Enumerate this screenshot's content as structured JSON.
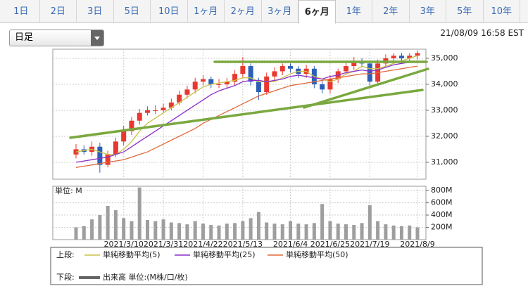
{
  "tabs": [
    "1日",
    "2日",
    "3日",
    "5日",
    "10日",
    "1ヶ月",
    "2ヶ月",
    "3ヶ月",
    "6ヶ月",
    "1年",
    "2年",
    "3年",
    "5年",
    "10年"
  ],
  "active_tab": 8,
  "dropdown": "日足",
  "timestamp": "21/08/09 16:58 EST",
  "chart_data": [
    {
      "type": "candlestick",
      "up_color": "#e8382f",
      "down_color": "#2c5fb8",
      "open": [
        31300,
        31500,
        31400,
        31600,
        30900,
        31300,
        31800,
        32200,
        32600,
        32900,
        33000,
        33000,
        33100,
        33300,
        33600,
        33800,
        34100,
        34200,
        34000,
        34000,
        34100,
        34400,
        34700,
        34100,
        33700,
        34300,
        34500,
        34700,
        34600,
        34400,
        34600,
        34000,
        33800,
        34200,
        34500,
        34700,
        34900,
        34800,
        34100,
        34800,
        35000,
        35100,
        35000,
        35100
      ],
      "high": [
        31700,
        31650,
        31800,
        31750,
        31450,
        31950,
        32400,
        32750,
        33050,
        33150,
        33200,
        33250,
        33450,
        33750,
        33950,
        34250,
        34350,
        34300,
        34200,
        34250,
        34550,
        35050,
        34800,
        34250,
        34450,
        34650,
        34800,
        34800,
        34700,
        34750,
        34700,
        34150,
        34350,
        34600,
        34850,
        35050,
        35000,
        34900,
        34950,
        35150,
        35200,
        35200,
        35200,
        35300
      ],
      "low": [
        31150,
        31300,
        31250,
        30600,
        30800,
        31200,
        31650,
        32050,
        32450,
        32800,
        32850,
        32900,
        33000,
        33200,
        33450,
        33650,
        33950,
        33850,
        33850,
        33850,
        33950,
        34250,
        33950,
        33400,
        33600,
        34150,
        34350,
        34450,
        34250,
        34250,
        33850,
        33650,
        33650,
        34050,
        34350,
        34550,
        34650,
        33900,
        33950,
        34650,
        34850,
        34850,
        34900,
        34950
      ],
      "close": [
        31500,
        31400,
        31600,
        30900,
        31300,
        31800,
        32200,
        32600,
        32900,
        33000,
        33000,
        33100,
        33300,
        33600,
        33800,
        34100,
        34200,
        34000,
        34000,
        34100,
        34400,
        34700,
        34100,
        33700,
        34300,
        34500,
        34700,
        34600,
        34400,
        34600,
        34000,
        33800,
        34200,
        34500,
        34700,
        34900,
        34800,
        34100,
        34800,
        35000,
        35100,
        35000,
        35100,
        35200
      ],
      "series": [
        {
          "name": "単純移動平均(5)",
          "color": "#c9c24a",
          "values": [
            31400,
            31450,
            31500,
            31400,
            31300,
            31300,
            31500,
            31800,
            32200,
            32500,
            32700,
            32900,
            33100,
            33300,
            33500,
            33700,
            33900,
            34000,
            34050,
            34100,
            34150,
            34250,
            34250,
            34100,
            34100,
            34100,
            34250,
            34400,
            34500,
            34500,
            34300,
            34200,
            34100,
            34200,
            34400,
            34500,
            34700,
            34600,
            34600,
            34700,
            34800,
            34900,
            35000,
            35100
          ]
        },
        {
          "name": "単純移動平均(25)",
          "color": "#8b2fc9",
          "values": [
            31000,
            31050,
            31100,
            31150,
            31200,
            31300,
            31400,
            31600,
            31800,
            32000,
            32200,
            32400,
            32600,
            32800,
            33000,
            33200,
            33400,
            33600,
            33750,
            33850,
            33950,
            34100,
            34150,
            34150,
            34100,
            34150,
            34200,
            34300,
            34350,
            34300,
            34250,
            34200,
            34300,
            34350,
            34450,
            34500,
            34550,
            34500,
            34550,
            34650,
            34750,
            34800,
            34850,
            34900
          ]
        },
        {
          "name": "単純移動平均(50)",
          "color": "#e06a3a",
          "values": [
            30800,
            30850,
            30900,
            30950,
            31000,
            31050,
            31100,
            31200,
            31300,
            31400,
            31550,
            31700,
            31850,
            32000,
            32150,
            32300,
            32500,
            32650,
            32800,
            32950,
            33100,
            33250,
            33400,
            33550,
            33650,
            33750,
            33850,
            33950,
            34000,
            34050,
            34100,
            34150,
            34200,
            34250,
            34300,
            34350,
            34400,
            34400,
            34450,
            34500,
            34550,
            34600,
            34650,
            34700
          ]
        }
      ],
      "ylim": [
        30350,
        35350
      ],
      "yticks": [
        {
          "value": 31000,
          "label": "31,000"
        },
        {
          "value": 32000,
          "label": "32,000"
        },
        {
          "value": 33000,
          "label": "33,000"
        },
        {
          "value": 34000,
          "label": "34,000"
        },
        {
          "value": 35000,
          "label": "35,000"
        }
      ],
      "grid": true
    },
    {
      "type": "bar",
      "unit_label": "単位: M",
      "categories": [
        null,
        null,
        null,
        null,
        null,
        null,
        "2021/3/10",
        null,
        null,
        null,
        null,
        "2021/3/31",
        null,
        null,
        null,
        null,
        "2021/4/22",
        null,
        null,
        null,
        null,
        "2021/5/13",
        null,
        null,
        null,
        null,
        null,
        "2021/6/4",
        null,
        null,
        null,
        null,
        "2021/6/25",
        null,
        null,
        null,
        null,
        "2021/7/19",
        null,
        null,
        null,
        null,
        null,
        "2021/8/9"
      ],
      "series": [
        {
          "name": "出来高 単位:(M株/口/枚)",
          "color": "#9e9e9e",
          "values": [
            200,
            220,
            330,
            400,
            550,
            480,
            350,
            300,
            850,
            320,
            300,
            330,
            280,
            270,
            250,
            300,
            260,
            240,
            230,
            260,
            270,
            300,
            350,
            450,
            280,
            260,
            250,
            300,
            260,
            250,
            270,
            580,
            300,
            260,
            250,
            240,
            270,
            560,
            300,
            250,
            230,
            220,
            230,
            200
          ]
        }
      ],
      "ylim": [
        0,
        870
      ],
      "yticks": [
        {
          "value": 200,
          "label": "200M"
        },
        {
          "value": 400,
          "label": "400M"
        },
        {
          "value": 600,
          "label": "600M"
        },
        {
          "value": 800,
          "label": "800M"
        }
      ],
      "grid": true
    }
  ],
  "legend": {
    "upper_label": "上段:",
    "lower_label": "下段:"
  }
}
